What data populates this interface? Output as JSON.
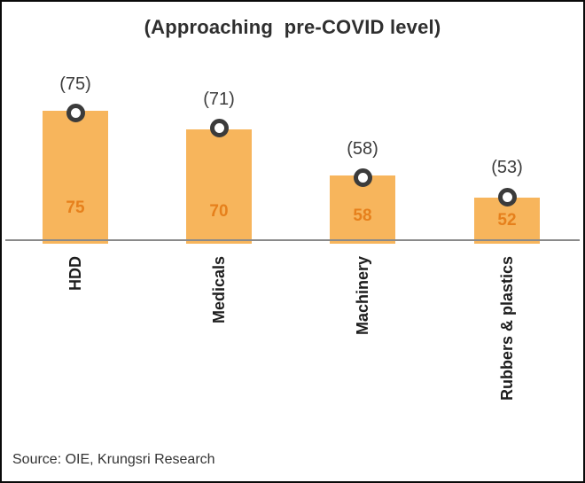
{
  "title": "(Approaching  pre-COVID level)",
  "source_note": "Source: OIE, Krungsri Research",
  "colors": {
    "bar_fill": "#F7B55C",
    "bar_value_text": "#E6801C",
    "marker_ring": "#3B3B3B",
    "axis_line": "#8A8A8A",
    "title_text": "#2F2F2F",
    "category_text": "#1D1D1D",
    "border": "#0A0A0A"
  },
  "chart_data": {
    "type": "bar",
    "title": "(Approaching  pre-COVID level)",
    "categories": [
      "HDD",
      "Medicals",
      "Machinery",
      "Rubbers & plastics"
    ],
    "series": [
      {
        "name": "bar-values",
        "values": [
          75,
          70,
          58,
          52
        ]
      },
      {
        "name": "circle-marker-values",
        "values": [
          75,
          71,
          58,
          53
        ]
      }
    ],
    "bar_value_labels": [
      "75",
      "70",
      "58",
      "52"
    ],
    "marker_value_labels": [
      "(75)",
      "(71)",
      "(58)",
      "(53)"
    ],
    "xlabel": "",
    "ylabel": "",
    "legend": "none",
    "grid": false,
    "orientation": "vertical",
    "value_axis_hidden": true,
    "source": "Source: OIE, Krungsri Research"
  }
}
